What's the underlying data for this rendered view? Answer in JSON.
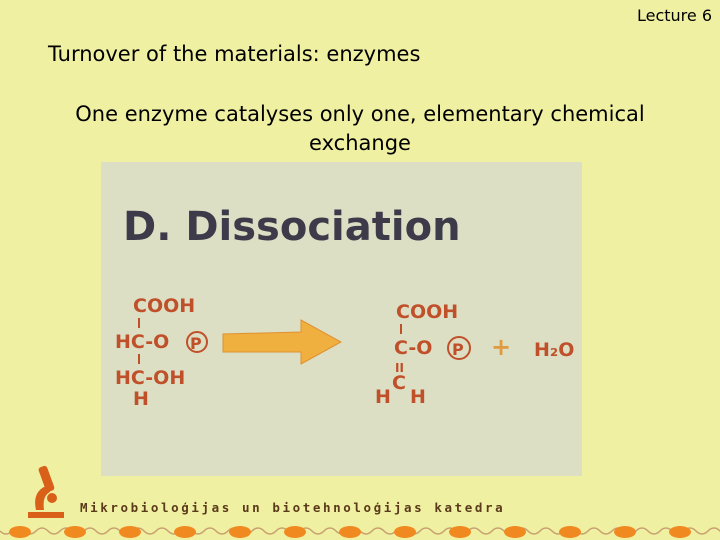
{
  "header": {
    "lecture": "Lecture 6"
  },
  "title": "Turnover of the materials: enzymes",
  "subtitle": "One enzyme catalyses only one, elementary chemical exchange",
  "figure": {
    "heading": "D. Dissociation",
    "left": {
      "line1": "COOH",
      "line2": "HC-O",
      "phosphate": "P",
      "line3": "HC-OH",
      "line4": "H"
    },
    "right": {
      "line1": "COOH",
      "line2": "C-O",
      "phosphate": "P",
      "double_bond": "II",
      "carbon": "C",
      "h_left": "H",
      "h_right": "H"
    },
    "plus": "+",
    "water": "H₂O"
  },
  "footer": {
    "department": "Mikrobioloģijas un biotehnoloģijas katedra"
  }
}
